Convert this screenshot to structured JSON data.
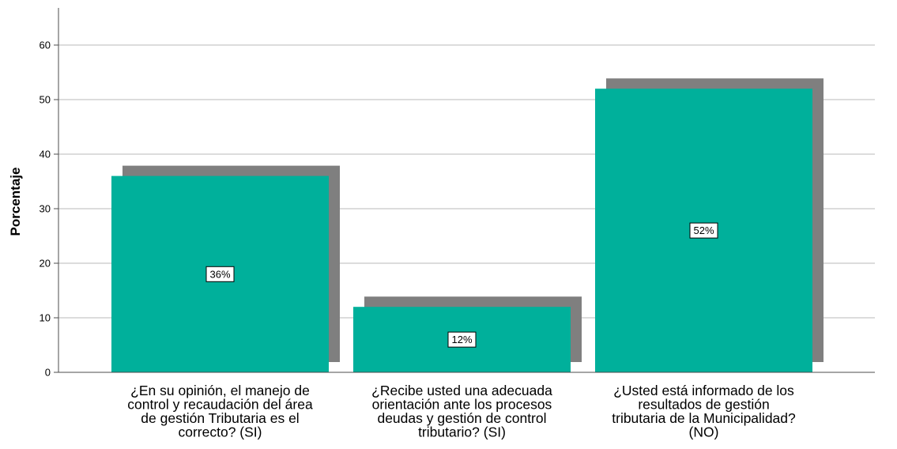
{
  "chart_data": {
    "type": "bar",
    "title": "",
    "xlabel": "",
    "ylabel": "Porcentaje",
    "ylim": [
      0,
      66
    ],
    "yticks": [
      0,
      10,
      20,
      30,
      40,
      50,
      60
    ],
    "grid": true,
    "style": "3d-shadow",
    "colors": {
      "bar": "#00b09b",
      "shadow": "#7f7f7f",
      "gridline": "#c8c8c8",
      "axis": "#4d4d4d"
    },
    "categories": [
      [
        "¿En su opinión, el manejo de",
        "control y recaudación del área",
        "de gestión Tributaria es el",
        "correcto? (SI)"
      ],
      [
        "¿Recibe usted una adecuada",
        "orientación ante los procesos",
        "deudas y gestión de control",
        "tributario? (SI)"
      ],
      [
        "¿Usted está informado de los",
        "resultados de gestión",
        "tributaria de la Municipalidad?",
        "(NO)"
      ]
    ],
    "values": [
      36,
      12,
      52
    ],
    "data_labels": [
      "36%",
      "12%",
      "52%"
    ]
  }
}
